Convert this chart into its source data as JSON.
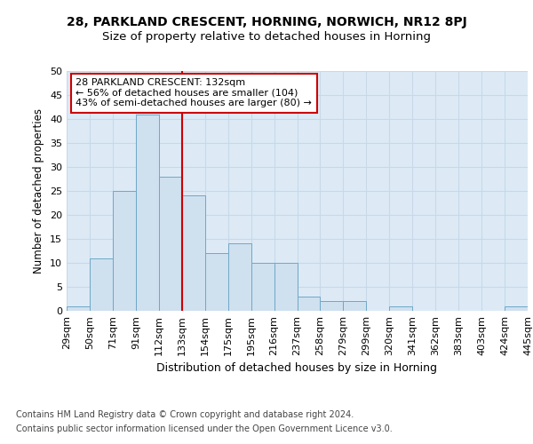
{
  "title1": "28, PARKLAND CRESCENT, HORNING, NORWICH, NR12 8PJ",
  "title2": "Size of property relative to detached houses in Horning",
  "xlabel": "Distribution of detached houses by size in Horning",
  "ylabel": "Number of detached properties",
  "bins": [
    "29sqm",
    "50sqm",
    "71sqm",
    "91sqm",
    "112sqm",
    "133sqm",
    "154sqm",
    "175sqm",
    "195sqm",
    "216sqm",
    "237sqm",
    "258sqm",
    "279sqm",
    "299sqm",
    "320sqm",
    "341sqm",
    "362sqm",
    "383sqm",
    "403sqm",
    "424sqm",
    "445sqm"
  ],
  "values": [
    1,
    11,
    25,
    41,
    28,
    24,
    12,
    14,
    10,
    10,
    3,
    2,
    2,
    0,
    1,
    0,
    0,
    0,
    0,
    1
  ],
  "bar_color": "#cfe0ef",
  "bar_edge_color": "#6fa8c8",
  "red_line_x": 5,
  "annotation_text": "28 PARKLAND CRESCENT: 132sqm\n← 56% of detached houses are smaller (104)\n43% of semi-detached houses are larger (80) →",
  "annotation_box_color": "#ffffff",
  "annotation_box_edge_color": "#cc0000",
  "red_line_color": "#cc0000",
  "grid_color": "#c8d8e8",
  "background_color": "#ddeaf6",
  "ylim": [
    0,
    50
  ],
  "yticks": [
    0,
    5,
    10,
    15,
    20,
    25,
    30,
    35,
    40,
    45,
    50
  ],
  "footer1": "Contains HM Land Registry data © Crown copyright and database right 2024.",
  "footer2": "Contains public sector information licensed under the Open Government Licence v3.0.",
  "title1_fontsize": 10,
  "title2_fontsize": 9.5,
  "tick_fontsize": 8,
  "ylabel_fontsize": 8.5,
  "xlabel_fontsize": 9,
  "footer_fontsize": 7,
  "annot_fontsize": 8
}
